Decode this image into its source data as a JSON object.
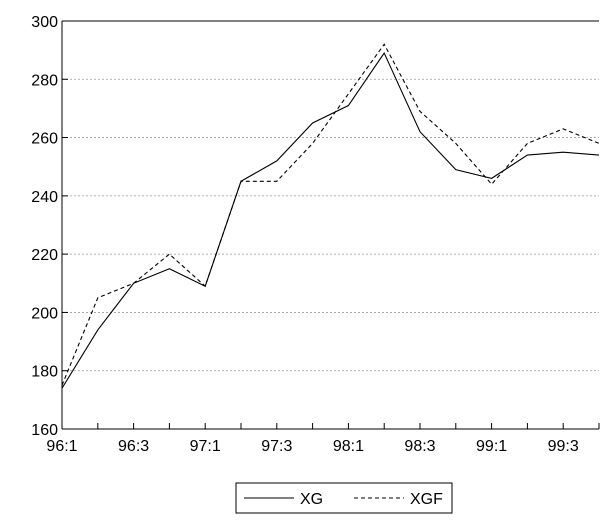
{
  "chart_data": {
    "type": "line",
    "categories": [
      "96:1",
      null,
      "96:3",
      null,
      "97:1",
      null,
      "97:3",
      null,
      "98:1",
      null,
      "98:3",
      null,
      "99:1",
      null,
      "99:3",
      null
    ],
    "series": [
      {
        "name": "XG",
        "color": "#000000",
        "dash": false,
        "values": [
          174,
          194,
          210,
          215,
          209,
          245,
          252,
          265,
          271,
          289,
          262,
          249,
          246,
          254,
          255,
          254
        ]
      },
      {
        "name": "XGF",
        "color": "#000000",
        "dash": true,
        "values": [
          175,
          205,
          210,
          220,
          209,
          245,
          245,
          258,
          275,
          292,
          269,
          258,
          244,
          258,
          263,
          258
        ]
      }
    ],
    "ylim": [
      160,
      300
    ],
    "yticks": [
      160,
      180,
      200,
      220,
      240,
      260,
      280,
      300
    ],
    "grid": true,
    "legend": "bottom"
  }
}
